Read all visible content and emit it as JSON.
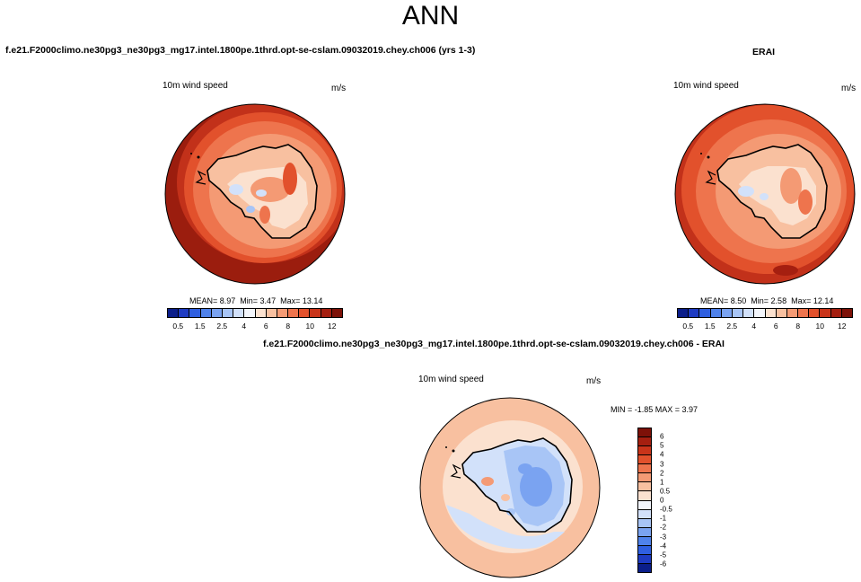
{
  "figure": {
    "title": "ANN"
  },
  "panels": {
    "model": {
      "title": "f.e21.F2000climo.ne30pg3_ne30pg3_mg17.intel.1800pe.1thrd.opt-se-cslam.09032019.chey.ch006 (yrs 1-3)",
      "variable": "10m wind speed",
      "units": "m/s",
      "mean_text": "MEAN=  8.97",
      "min_text": "Min=  3.47",
      "max_text": "Max=  13.14"
    },
    "obs": {
      "title": "ERAI",
      "variable": "10m wind speed",
      "units": "m/s",
      "mean_text": "MEAN=  8.50",
      "min_text": "Min=  2.58",
      "max_text": "Max=  12.14"
    },
    "diff": {
      "title": "f.e21.F2000climo.ne30pg3_ne30pg3_mg17.intel.1800pe.1thrd.opt-se-cslam.09032019.chey.ch006 - ERAI",
      "variable": "10m wind speed",
      "units": "m/s",
      "minmax_text": "MIN =  -1.85 MAX =   3.97"
    }
  },
  "colorbars": {
    "field": {
      "labels": [
        "0.5",
        "1.5",
        "2.5",
        "4",
        "6",
        "8",
        "10",
        "12"
      ],
      "colors": [
        "#0b1e8a",
        "#1e3bc2",
        "#2f5fe0",
        "#4f82eb",
        "#7aa3f1",
        "#a8c5f6",
        "#d2e1fa",
        "#f3f6fc",
        "#fbe1cf",
        "#f8c0a0",
        "#f49a74",
        "#ee744d",
        "#e2512c",
        "#c9341a",
        "#a51f10",
        "#7d1108"
      ]
    },
    "diff": {
      "labels": [
        "6",
        "5",
        "4",
        "3",
        "2",
        "1",
        "0.5",
        "0",
        "-0.5",
        "-1",
        "-2",
        "-3",
        "-4",
        "-5",
        "-6"
      ],
      "colors": [
        "#7d1108",
        "#a51f10",
        "#c9341a",
        "#e2512c",
        "#ee744d",
        "#f49a74",
        "#f8c0a0",
        "#fbe1cf",
        "#f3f6fc",
        "#d2e1fa",
        "#a8c5f6",
        "#7aa3f1",
        "#4f82eb",
        "#2f5fe0",
        "#1e3bc2",
        "#0b1e8a"
      ]
    }
  }
}
